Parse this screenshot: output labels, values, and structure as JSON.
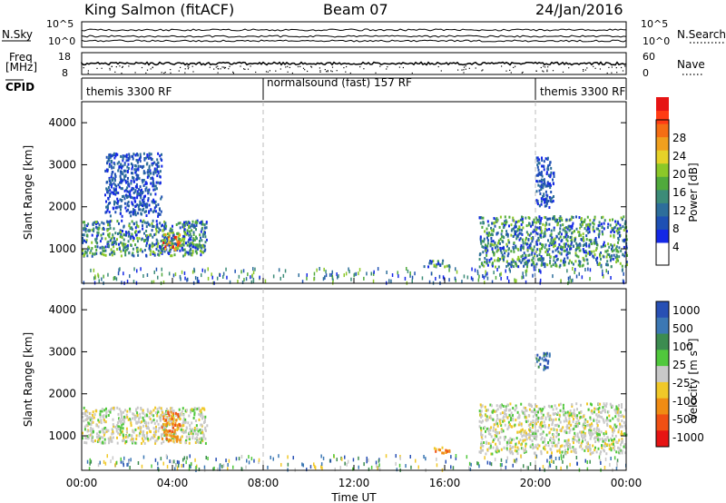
{
  "header": {
    "station": "King Salmon (fitACF)",
    "beam": "Beam 07",
    "date": "24/Jan/2016"
  },
  "strip_labels": {
    "nsky": "N.Sky",
    "nsky_ticks": [
      "10^5",
      "10^0"
    ],
    "nsearch": "N.Search",
    "nsearch_ticks": [
      "10^5",
      "10^0"
    ],
    "freq_line1": "Freq",
    "freq_line2": "[MHz]",
    "freq_ticks": [
      "18",
      "8"
    ],
    "nave": "Nave",
    "nave_ticks": [
      "60",
      "0"
    ],
    "cpid": "CPID"
  },
  "cpid_segments": [
    {
      "label": "themis 3300 RF",
      "start_hour": 0
    },
    {
      "label": "normalsound (fast) 157 RF",
      "start_hour": 8
    },
    {
      "label": "themis 3300 RF",
      "start_hour": 20
    }
  ],
  "chart_data": [
    {
      "type": "heatmap",
      "title": "",
      "ylabel": "Slant Range [km]",
      "xlabel": "",
      "ylim": [
        180,
        4500
      ],
      "yticks": [
        "1000",
        "2000",
        "3000",
        "4000"
      ],
      "colorbar": {
        "label": "Power [dB]",
        "ticks": [
          "4",
          "8",
          "12",
          "16",
          "20",
          "24",
          "28"
        ],
        "colors": [
          "#1428e6",
          "#1e50b4",
          "#2d6e9b",
          "#3c8c78",
          "#50aa3c",
          "#8cc828",
          "#e6d228",
          "#f0a01e",
          "#f56e14",
          "#ff3c14",
          "#e61414"
        ]
      },
      "regions": [
        {
          "start_hour": 0.0,
          "end_hour": 5.5,
          "range_km": [
            850,
            1700
          ],
          "level": "moderate"
        },
        {
          "start_hour": 1.0,
          "end_hour": 3.5,
          "range_km": [
            1800,
            3300
          ],
          "level": "weak"
        },
        {
          "start_hour": 3.5,
          "end_hour": 4.3,
          "range_km": [
            1000,
            1400
          ],
          "level": "strong"
        },
        {
          "start_hour": 15.0,
          "end_hour": 16.3,
          "range_km": [
            600,
            750
          ],
          "level": "moderate"
        },
        {
          "start_hour": 17.5,
          "end_hour": 24.0,
          "range_km": [
            600,
            1800
          ],
          "level": "moderate"
        },
        {
          "start_hour": 20.0,
          "end_hour": 20.8,
          "range_km": [
            2000,
            3200
          ],
          "level": "weak"
        }
      ]
    },
    {
      "type": "heatmap",
      "title": "",
      "ylabel": "Slant Range [km]",
      "xlabel": "Time UT",
      "ylim": [
        180,
        4500
      ],
      "yticks": [
        "1000",
        "2000",
        "3000",
        "4000"
      ],
      "xticks": [
        "00:00",
        "04:00",
        "08:00",
        "12:00",
        "16:00",
        "20:00",
        "00:00"
      ],
      "colorbar": {
        "label": "Velocity [m s^-1]",
        "ticks": [
          "1000",
          "500",
          "100",
          "25",
          "-25",
          "-100",
          "-500",
          "-1000"
        ],
        "colors": [
          "#2850b4",
          "#3c78b4",
          "#3c8c50",
          "#50c83c",
          "#c8c8c8",
          "#f0c828",
          "#f08c14",
          "#f05014",
          "#e61414"
        ]
      },
      "regions": [
        {
          "start_hour": 0.0,
          "end_hour": 5.5,
          "range_km": [
            850,
            1700
          ],
          "level": "near-zero"
        },
        {
          "start_hour": 3.5,
          "end_hour": 4.3,
          "range_km": [
            900,
            1600
          ],
          "level": "negative"
        },
        {
          "start_hour": 15.5,
          "end_hour": 16.3,
          "range_km": [
            600,
            750
          ],
          "level": "negative"
        },
        {
          "start_hour": 17.5,
          "end_hour": 24.0,
          "range_km": [
            600,
            1800
          ],
          "level": "near-zero"
        },
        {
          "start_hour": 20.0,
          "end_hour": 20.6,
          "range_km": [
            2600,
            3000
          ],
          "level": "positive"
        }
      ]
    }
  ]
}
